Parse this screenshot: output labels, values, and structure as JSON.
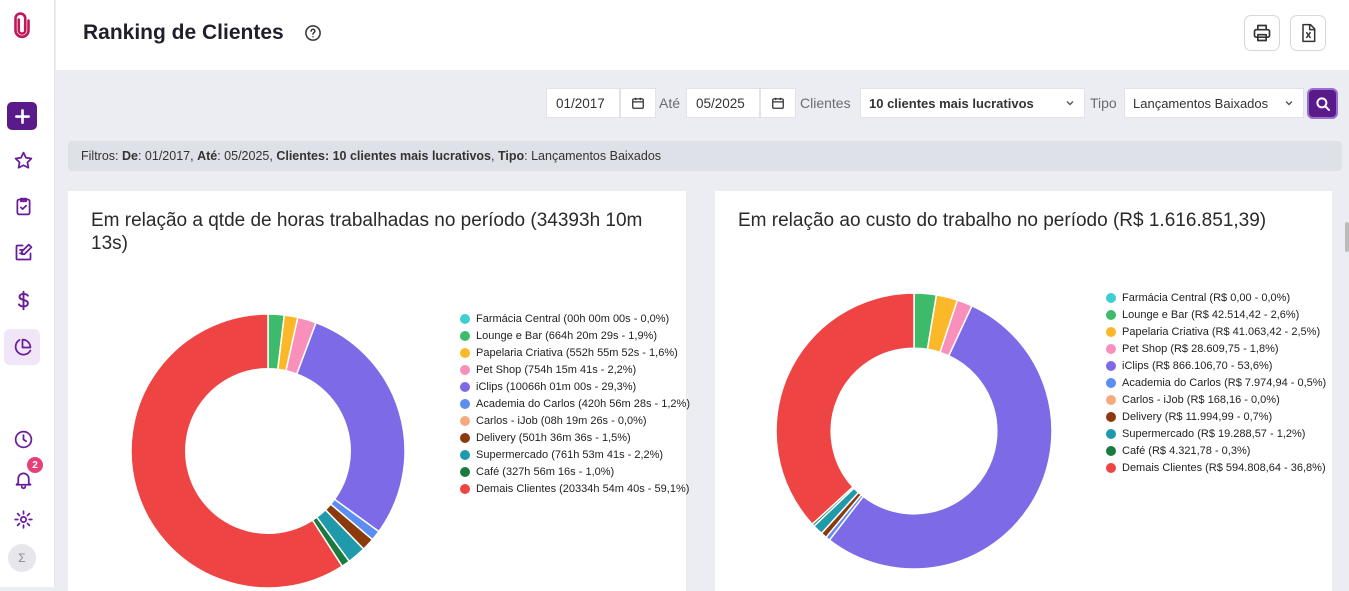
{
  "header": {
    "title": "Ranking de Clientes",
    "print_icon": "printer-icon",
    "excel_icon": "excel-icon"
  },
  "sidebar": {
    "notifications_count": "2",
    "avatar_text": "Σ",
    "items": [
      {
        "icon": "logo-paperclip-icon"
      },
      {
        "icon": "plus-icon"
      },
      {
        "icon": "star-icon"
      },
      {
        "icon": "clipboard-check-icon"
      },
      {
        "icon": "edit-icon"
      },
      {
        "icon": "dollar-icon"
      },
      {
        "icon": "pie-chart-icon"
      },
      {
        "icon": "clock-icon"
      },
      {
        "icon": "bell-icon"
      },
      {
        "icon": "gear-icon"
      }
    ]
  },
  "filters": {
    "from_value": "01/2017",
    "ate_label": "Até",
    "to_value": "05/2025",
    "clientes_label": "Clientes",
    "clientes_value": "10 clientes mais lucrativos",
    "tipo_label": "Tipo",
    "tipo_value": "Lançamentos Baixados"
  },
  "summary": {
    "prefix": "Filtros: ",
    "de_label": "De",
    "de_value": ": 01/2017, ",
    "ate_label": "Até",
    "ate_value": ": 05/2025, ",
    "clientes_label": "Clientes",
    "clientes_value": ": 10 clientes mais lucrativos",
    "sep": ", ",
    "tipo_label": "Tipo",
    "tipo_value": ": Lançamentos Baixados"
  },
  "colors": {
    "accent": "#5b1a8a",
    "series": [
      "#3ecfd4",
      "#3dba6a",
      "#fbb829",
      "#f98fbb",
      "#7d6ae6",
      "#5b8ef0",
      "#f5a97f",
      "#8b3a0e",
      "#1e9aab",
      "#1b7a3e",
      "#ef4444"
    ]
  },
  "chart_data": [
    {
      "type": "pie",
      "title": "Em relação a qtde de horas trabalhadas no período (34393h 10m 13s)",
      "categories": [
        "Farmácia Central",
        "Lounge e Bar",
        "Papelaria Criativa",
        "Pet Shop",
        "iClips",
        "Academia do Carlos",
        "Carlos - iJob",
        "Delivery",
        "Supermercado",
        "Café",
        "Demais Clientes"
      ],
      "values": [
        0.0,
        1.9,
        1.6,
        2.2,
        29.3,
        1.2,
        0.0,
        1.5,
        2.2,
        1.0,
        59.1
      ],
      "legend": [
        "Farmácia Central (00h 00m 00s - 0,0%)",
        "Lounge e Bar (664h 20m 29s - 1,9%)",
        "Papelaria Criativa (552h 55m 52s - 1,6%)",
        "Pet Shop (754h 15m 41s - 2,2%)",
        "iClips (10066h 01m 00s - 29,3%)",
        "Academia do Carlos (420h 56m 28s - 1,2%)",
        "Carlos - iJob (08h 19m 26s - 0,0%)",
        "Delivery (501h 36m 36s - 1,5%)",
        "Supermercado (761h 53m 41s - 2,2%)",
        "Café (327h 56m 16s - 1,0%)",
        "Demais Clientes (20334h 54m 40s - 59,1%)"
      ],
      "legend_position": "right"
    },
    {
      "type": "pie",
      "title": "Em relação ao custo do trabalho no período (R$ 1.616.851,39)",
      "categories": [
        "Farmácia Central",
        "Lounge e Bar",
        "Papelaria Criativa",
        "Pet Shop",
        "iClips",
        "Academia do Carlos",
        "Carlos - iJob",
        "Delivery",
        "Supermercado",
        "Café",
        "Demais Clientes"
      ],
      "values": [
        0.0,
        2.6,
        2.5,
        1.8,
        53.6,
        0.5,
        0.0,
        0.7,
        1.2,
        0.3,
        36.8
      ],
      "legend": [
        "Farmácia Central (R$ 0,00 - 0,0%)",
        "Lounge e Bar (R$ 42.514,42 - 2,6%)",
        "Papelaria Criativa (R$ 41.063,42 - 2,5%)",
        "Pet Shop (R$ 28.609,75 - 1,8%)",
        "iClips (R$ 866.106,70 - 53,6%)",
        "Academia do Carlos (R$ 7.974,94 - 0,5%)",
        "Carlos - iJob (R$ 168,16 - 0,0%)",
        "Delivery (R$ 11.994,99 - 0,7%)",
        "Supermercado (R$ 19.288,57 - 1,2%)",
        "Café (R$ 4.321,78 - 0,3%)",
        "Demais Clientes (R$ 594.808,64 - 36,8%)"
      ],
      "legend_position": "right"
    }
  ]
}
